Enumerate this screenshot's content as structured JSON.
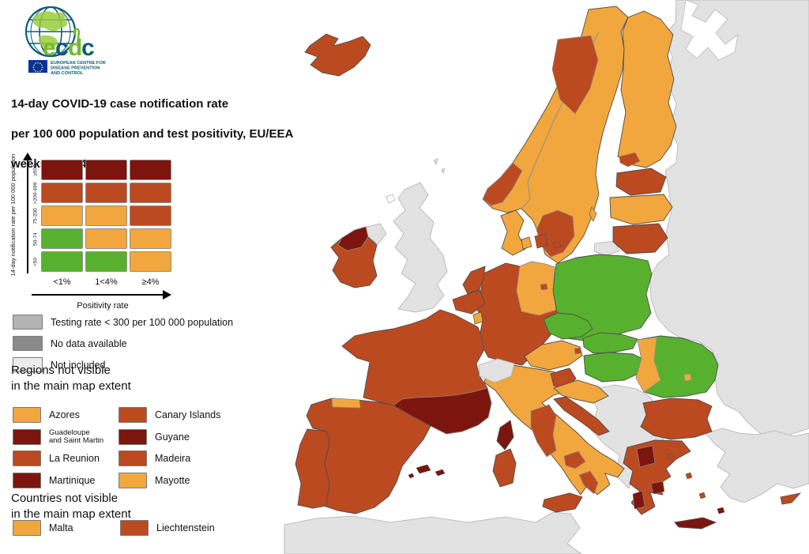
{
  "logo": {
    "name_letters": [
      "e",
      "c",
      "d",
      "c"
    ],
    "org_lines": [
      "EUROPEAN CENTRE FOR",
      "DISEASE PREVENTION",
      "AND CONTROL"
    ]
  },
  "title": {
    "line1": "14-day COVID-19 case notification rate",
    "line2": "per 100 000 population and test positivity, EU/EEA",
    "line3": "weeks 33 - 34"
  },
  "matrix_legend": {
    "y_axis_label": "14-day notification rate per 100 000 population",
    "x_axis_label": "Positivity rate",
    "row_labels": [
      "≥500",
      ">200-499",
      "75-200",
      "50-74",
      "<50"
    ],
    "col_labels": [
      "<1%",
      "1<4%",
      "≥4%"
    ],
    "cells": [
      [
        "darkred",
        "darkred",
        "darkred"
      ],
      [
        "red",
        "red",
        "red"
      ],
      [
        "orange",
        "orange",
        "red"
      ],
      [
        "green",
        "orange",
        "orange"
      ],
      [
        "green",
        "green",
        "orange"
      ]
    ]
  },
  "status_legend": [
    {
      "label": "Testing rate < 300 per 100 000 population",
      "color": "medgray"
    },
    {
      "label": "No data available",
      "color": "darkgray"
    },
    {
      "label": "Not included",
      "color": "lightgray2"
    }
  ],
  "regions_section": {
    "heading": "Regions not visible\nin the main map extent",
    "items": [
      {
        "label": "Azores",
        "color": "orange"
      },
      {
        "label": "Canary Islands",
        "color": "red"
      },
      {
        "label": "Guadeloupe and Saint Martin",
        "two_line": [
          "Guadeloupe",
          "and Saint Martin"
        ],
        "color": "darkred"
      },
      {
        "label": "Guyane",
        "color": "darkred"
      },
      {
        "label": "La Reunion",
        "color": "red"
      },
      {
        "label": "Madeira",
        "color": "red"
      },
      {
        "label": "Martinique",
        "color": "darkred"
      },
      {
        "label": "Mayotte",
        "color": "orange"
      }
    ]
  },
  "countries_section": {
    "heading": "Countries not visible\nin the main map extent",
    "items": [
      {
        "label": "Malta",
        "color": "orange"
      },
      {
        "label": "Liechtenstein",
        "color": "red"
      }
    ]
  },
  "colors": {
    "green": "#58b12e",
    "orange": "#f1a73d",
    "red": "#bc4a21",
    "darkred": "#7c150d",
    "medgray": "#b3b3b3",
    "darkgray": "#8a8a8a",
    "lightgray": "#e2e2e2",
    "lightgray2": "#ececec",
    "sea": "#ffffff",
    "logo_green": "#76b82a",
    "logo_teal": "#0e5c75",
    "eu_blue": "#003399",
    "eu_yellow": "#ffcc00"
  },
  "map": {
    "region_fills": {
      "east-europe": "lightgray",
      "white-sea": "sea",
      "turkey": "lightgray",
      "north-africa": "lightgray",
      "west-balkans": "lightgray",
      "united-kingdom": "lightgray",
      "northern-ireland": "lightgray",
      "switzerland": "lightgray",
      "faroe-islands": "sea",
      "shetland": "lightgray",
      "kaliningrad": "lightgray",
      "scandinavia": "orange",
      "sweden-north": "red",
      "norway-west": "red",
      "sweden-south": "red",
      "gotland": "orange",
      "bornholm": "red",
      "finland": "orange",
      "finland-south": "red",
      "iceland": "red",
      "estonia": "red",
      "latvia": "orange",
      "lithuania": "red",
      "denmark": "orange",
      "denmark-funen": "orange",
      "denmark-zealand": "red",
      "germany": "red",
      "germany-east": "orange",
      "berlin": "red",
      "netherlands": "red",
      "belgium": "red",
      "luxembourg": "orange",
      "poland": "green",
      "czechia": "green",
      "slovakia": "green",
      "hungary": "green",
      "italy": "orange",
      "italy-central": "red",
      "campania": "red",
      "calabria": "red",
      "friuli": "red",
      "sicily": "red",
      "sardinia": "red",
      "corsica": "darkred",
      "austria": "orange",
      "vienna": "red",
      "slovenia": "red",
      "croatia-inland": "orange",
      "croatia-coast": "red",
      "romania": "green",
      "romania-west": "orange",
      "bucharest": "orange",
      "bulgaria": "red",
      "greece": "red",
      "greece-northwest": "darkred",
      "attica": "darkred",
      "peloponnese-west": "darkred",
      "crete": "darkred",
      "aegean-1": "red",
      "aegean-2": "red",
      "aegean-3": "red",
      "rhodes": "darkred",
      "france": "red",
      "france-south": "darkred",
      "spain": "red",
      "spain-north": "orange",
      "portugal": "red",
      "balearic-1": "darkred",
      "balearic-2": "darkred",
      "balearic-3": "darkred",
      "ireland": "red",
      "ireland-northwest": "darkred",
      "cyprus": "red"
    }
  }
}
